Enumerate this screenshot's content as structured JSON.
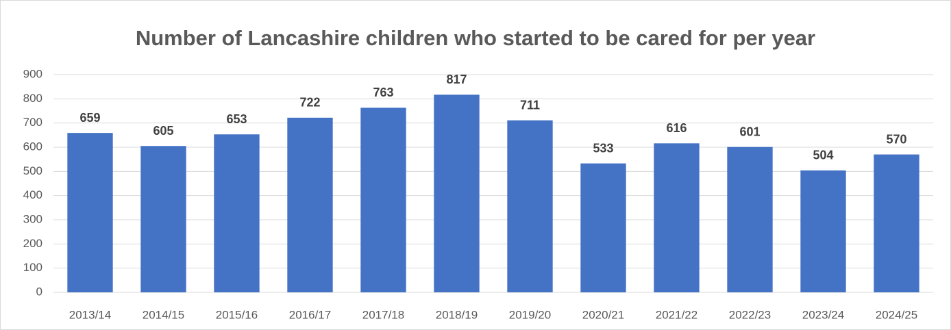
{
  "chart_data": {
    "type": "bar",
    "title": "Number of Lancashire children who started to be cared for per year",
    "categories": [
      "2013/14",
      "2014/15",
      "2015/16",
      "2016/17",
      "2017/18",
      "2018/19",
      "2019/20",
      "2020/21",
      "2021/22",
      "2022/23",
      "2023/24",
      "2024/25"
    ],
    "values": [
      659,
      605,
      653,
      722,
      763,
      817,
      711,
      533,
      616,
      601,
      504,
      570
    ],
    "color": "#4472c4",
    "ylim": [
      0,
      900
    ],
    "yticks": [
      0,
      100,
      200,
      300,
      400,
      500,
      600,
      700,
      800,
      900
    ],
    "grid": true
  }
}
